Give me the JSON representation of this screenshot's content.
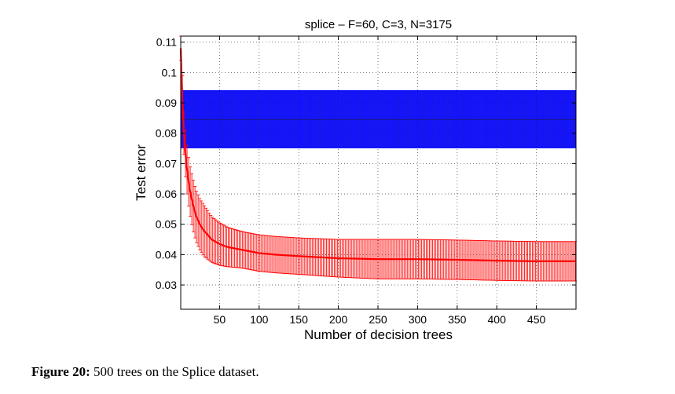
{
  "caption": {
    "label": "Figure 20:",
    "text": "500 trees on the Splice dataset."
  },
  "chart_data": {
    "type": "line",
    "title": "splice – F=60, C=3, N=3175",
    "xlabel": "Number of decision trees",
    "ylabel": "Test error",
    "xlim": [
      1,
      500
    ],
    "ylim": [
      0.022,
      0.112
    ],
    "xticks": [
      50,
      100,
      150,
      200,
      250,
      300,
      350,
      400,
      450
    ],
    "yticks": [
      0.03,
      0.04,
      0.05,
      0.06,
      0.07,
      0.08,
      0.09,
      0.1,
      0.11
    ],
    "ytick_labels": [
      "0.03",
      "0.04",
      "0.05",
      "0.06",
      "0.07",
      "0.08",
      "0.09",
      "0.1",
      "0.11"
    ],
    "grid": true,
    "series": [
      {
        "color": "#0000ff",
        "mean": 0.0845,
        "std_band": [
          0.0752,
          0.094
        ],
        "x": [
          1,
          500
        ],
        "values": [
          0.0845,
          0.0845
        ]
      },
      {
        "color": "#ff0000",
        "x": [
          1,
          2,
          3,
          5,
          8,
          12,
          16,
          20,
          25,
          30,
          40,
          50,
          60,
          70,
          80,
          100,
          120,
          150,
          200,
          250,
          300,
          350,
          400,
          450,
          500
        ],
        "values": [
          0.108,
          0.1,
          0.092,
          0.08,
          0.07,
          0.062,
          0.057,
          0.053,
          0.05,
          0.048,
          0.045,
          0.0435,
          0.0425,
          0.042,
          0.0415,
          0.0405,
          0.04,
          0.0395,
          0.0388,
          0.0385,
          0.0385,
          0.0383,
          0.038,
          0.0378,
          0.0378
        ],
        "std": [
          0.004,
          0.006,
          0.007,
          0.007,
          0.008,
          0.008,
          0.0085,
          0.0085,
          0.0085,
          0.0085,
          0.0075,
          0.007,
          0.0065,
          0.0062,
          0.006,
          0.006,
          0.006,
          0.006,
          0.0062,
          0.0065,
          0.0065,
          0.0065,
          0.0065,
          0.0065,
          0.0065
        ]
      }
    ]
  }
}
